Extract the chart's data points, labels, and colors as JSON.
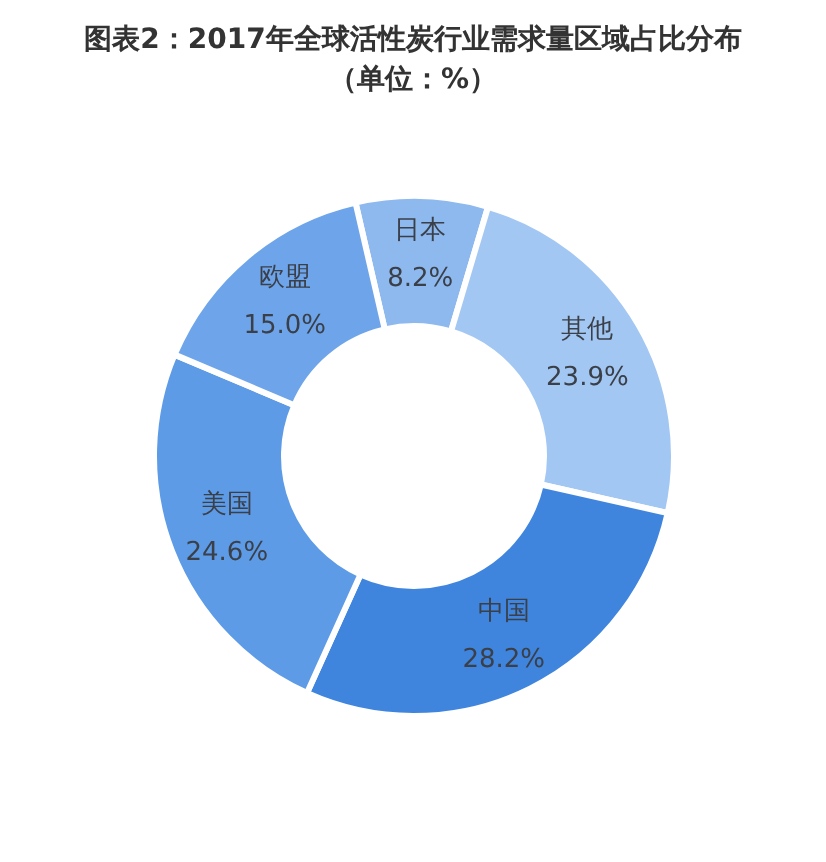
{
  "chart_data": {
    "type": "donut",
    "title": "图表2：2017年全球活性炭行业需求量区域占比分布",
    "subtitle": "（单位：%）",
    "categories": [
      "日本",
      "其他",
      "中国",
      "美国",
      "欧盟"
    ],
    "values": [
      8.2,
      23.9,
      28.2,
      24.6,
      15.0
    ],
    "value_labels": [
      "8.2%",
      "23.9%",
      "28.2%",
      "24.6%",
      "15.0%"
    ],
    "colors": [
      "#8db9ef",
      "#a3c7f3",
      "#3f85de",
      "#5d9be6",
      "#6ea5ea"
    ]
  }
}
